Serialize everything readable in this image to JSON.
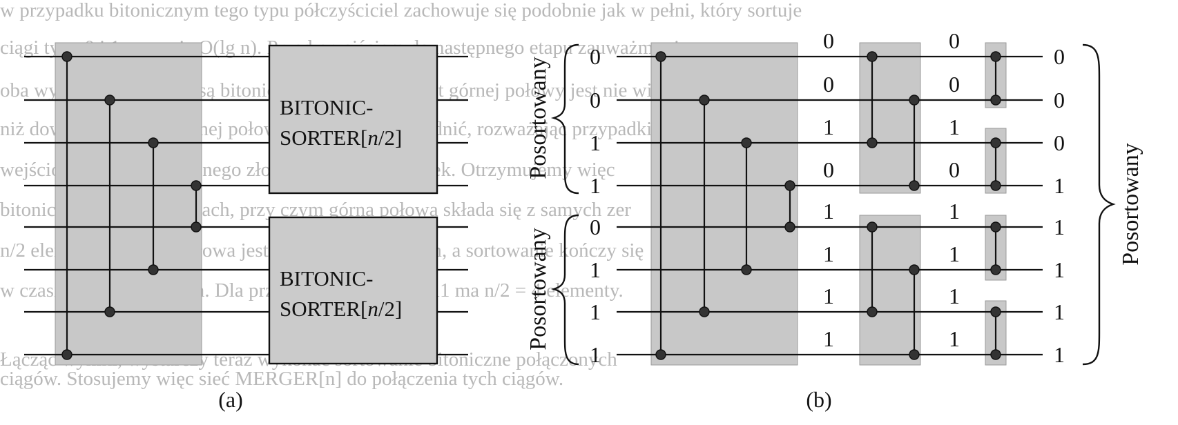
{
  "background_text": [
    "w przypadku bitonicznym tego typu półczyściciel zachowuje się podobnie jak w pełni, który sortuje",
    "ciągi typu 0 i 1 w czasie O(lg n). Przed przejściem do następnego etapu zauważmy, że",
    "oba wyjściowe podciągi są bitoniczne, a każdy element górnej połowy jest nie większy",
    "niż dowolny element dolnej połowy. Można to udowodnić, rozważając przypadki",
    "wejściowe ciągu bitonicznego złożonego z zer i jedynek. Otrzymujemy więc",
    "bitoniczne ciągi w połowach, przy czym górna połowa składa się z samych zer",
    "n/2 elementów, dolna połowa jest ciągiem bitonicznym, a sortowanie kończy się",
    "w czasie logarytmicznym. Dla przykładu ciąg 00001111 ma n/2 = 4 elementy.",
    "Łącząc wyniki, wystarczy teraz wykonać sortowanie bitoniczne połączonych",
    "ciągów. Stosujemy więc sieć MERGER[n] do połączenia tych ciągów."
  ],
  "panel_a": {
    "caption": "(a)",
    "boxes": [
      {
        "line1": "BITONIC-",
        "line2": "SORTER[",
        "italic": "n",
        "line2_end": "/2]"
      },
      {
        "line1": "BITONIC-",
        "line2": "SORTER[",
        "italic": "n",
        "line2_end": "/2]"
      }
    ]
  },
  "panel_b": {
    "caption": "(b)",
    "input_values": [
      "0",
      "0",
      "1",
      "1",
      "0",
      "1",
      "1",
      "1"
    ],
    "stage1_values": [
      "0",
      "0",
      "1",
      "0",
      "1",
      "1",
      "1",
      "1"
    ],
    "stage2_values": [
      "0",
      "0",
      "1",
      "0",
      "1",
      "1",
      "1",
      "1"
    ],
    "output_values": [
      "0",
      "0",
      "0",
      "1",
      "1",
      "1",
      "1",
      "1"
    ],
    "brace_top_label": "Posortowany",
    "brace_bottom_label": "Posortowany",
    "brace_right_label": "Posortowany"
  }
}
